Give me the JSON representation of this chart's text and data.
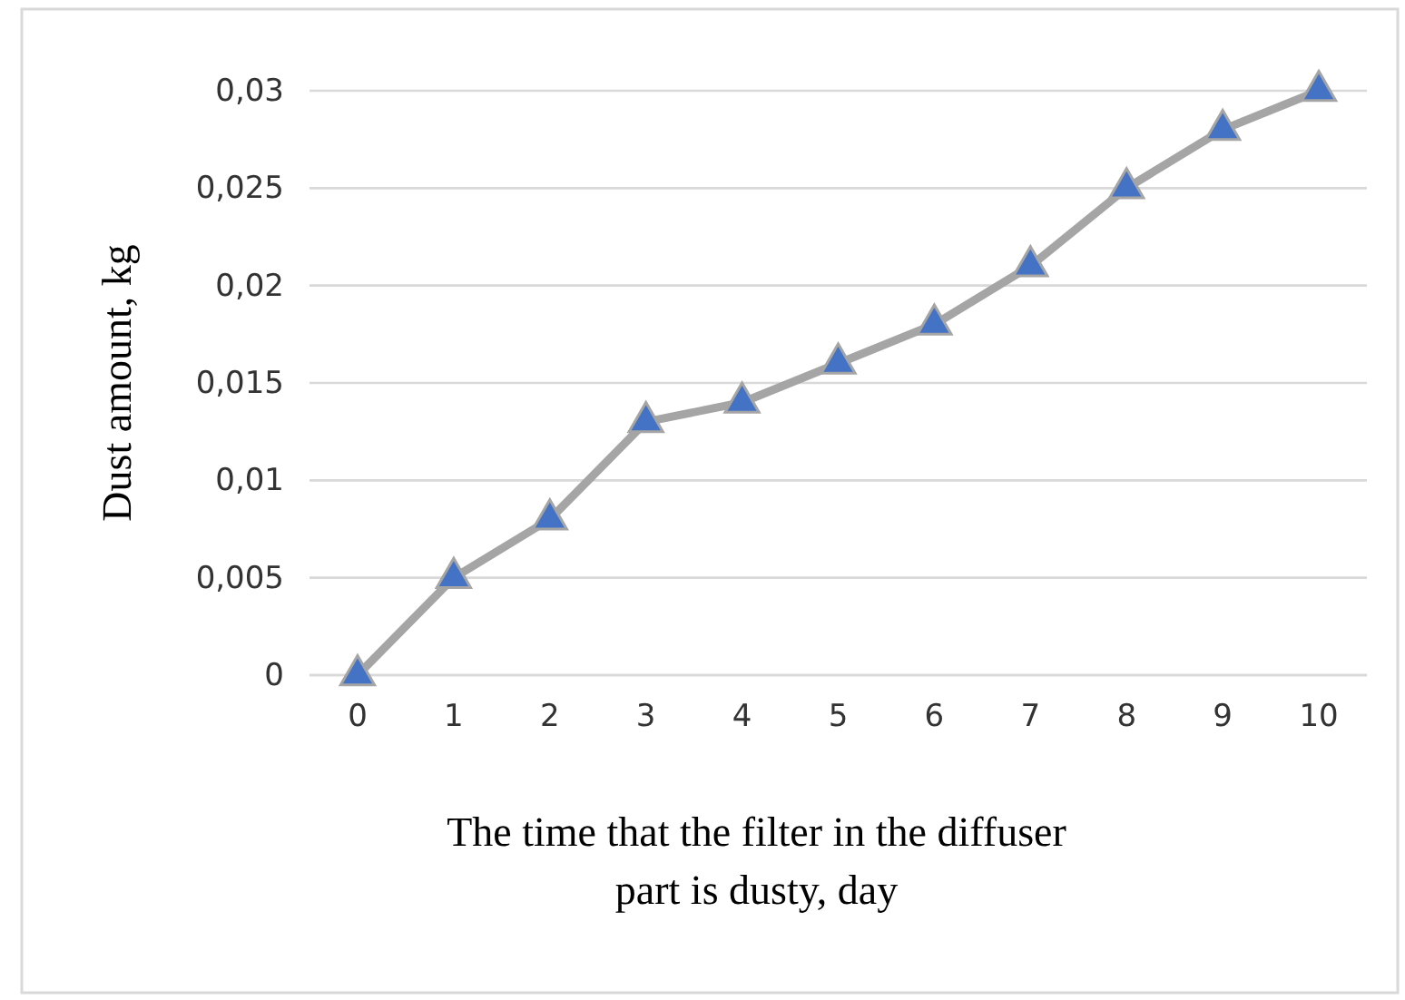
{
  "chart_data": {
    "type": "line",
    "xlabel": "The time that the filter in the diffuser part is dusty, day",
    "ylabel": "Dust amount, kg",
    "categories": [
      "0",
      "1",
      "2",
      "3",
      "4",
      "5",
      "6",
      "7",
      "8",
      "9",
      "10"
    ],
    "series": [
      {
        "color": "#a5a5a5",
        "values": [
          0,
          0.005,
          0.008,
          0.013,
          0.014,
          0.016,
          0.018,
          0.021,
          0.025,
          0.028,
          0.03
        ]
      }
    ],
    "ylim": [
      0,
      0.03
    ],
    "yticks": [
      0,
      {
        "value": 0.005,
        "label": "0,005"
      },
      {
        "value": 0.01,
        "label": "0,01"
      },
      {
        "value": 0.015,
        "label": "0,015"
      },
      {
        "value": 0.02,
        "label": "0,02"
      },
      {
        "value": 0.025,
        "label": "0,025"
      },
      {
        "value": 0.03,
        "label": "0,03"
      }
    ],
    "grid": "y",
    "marker": "triangle",
    "line_style": "solid"
  }
}
